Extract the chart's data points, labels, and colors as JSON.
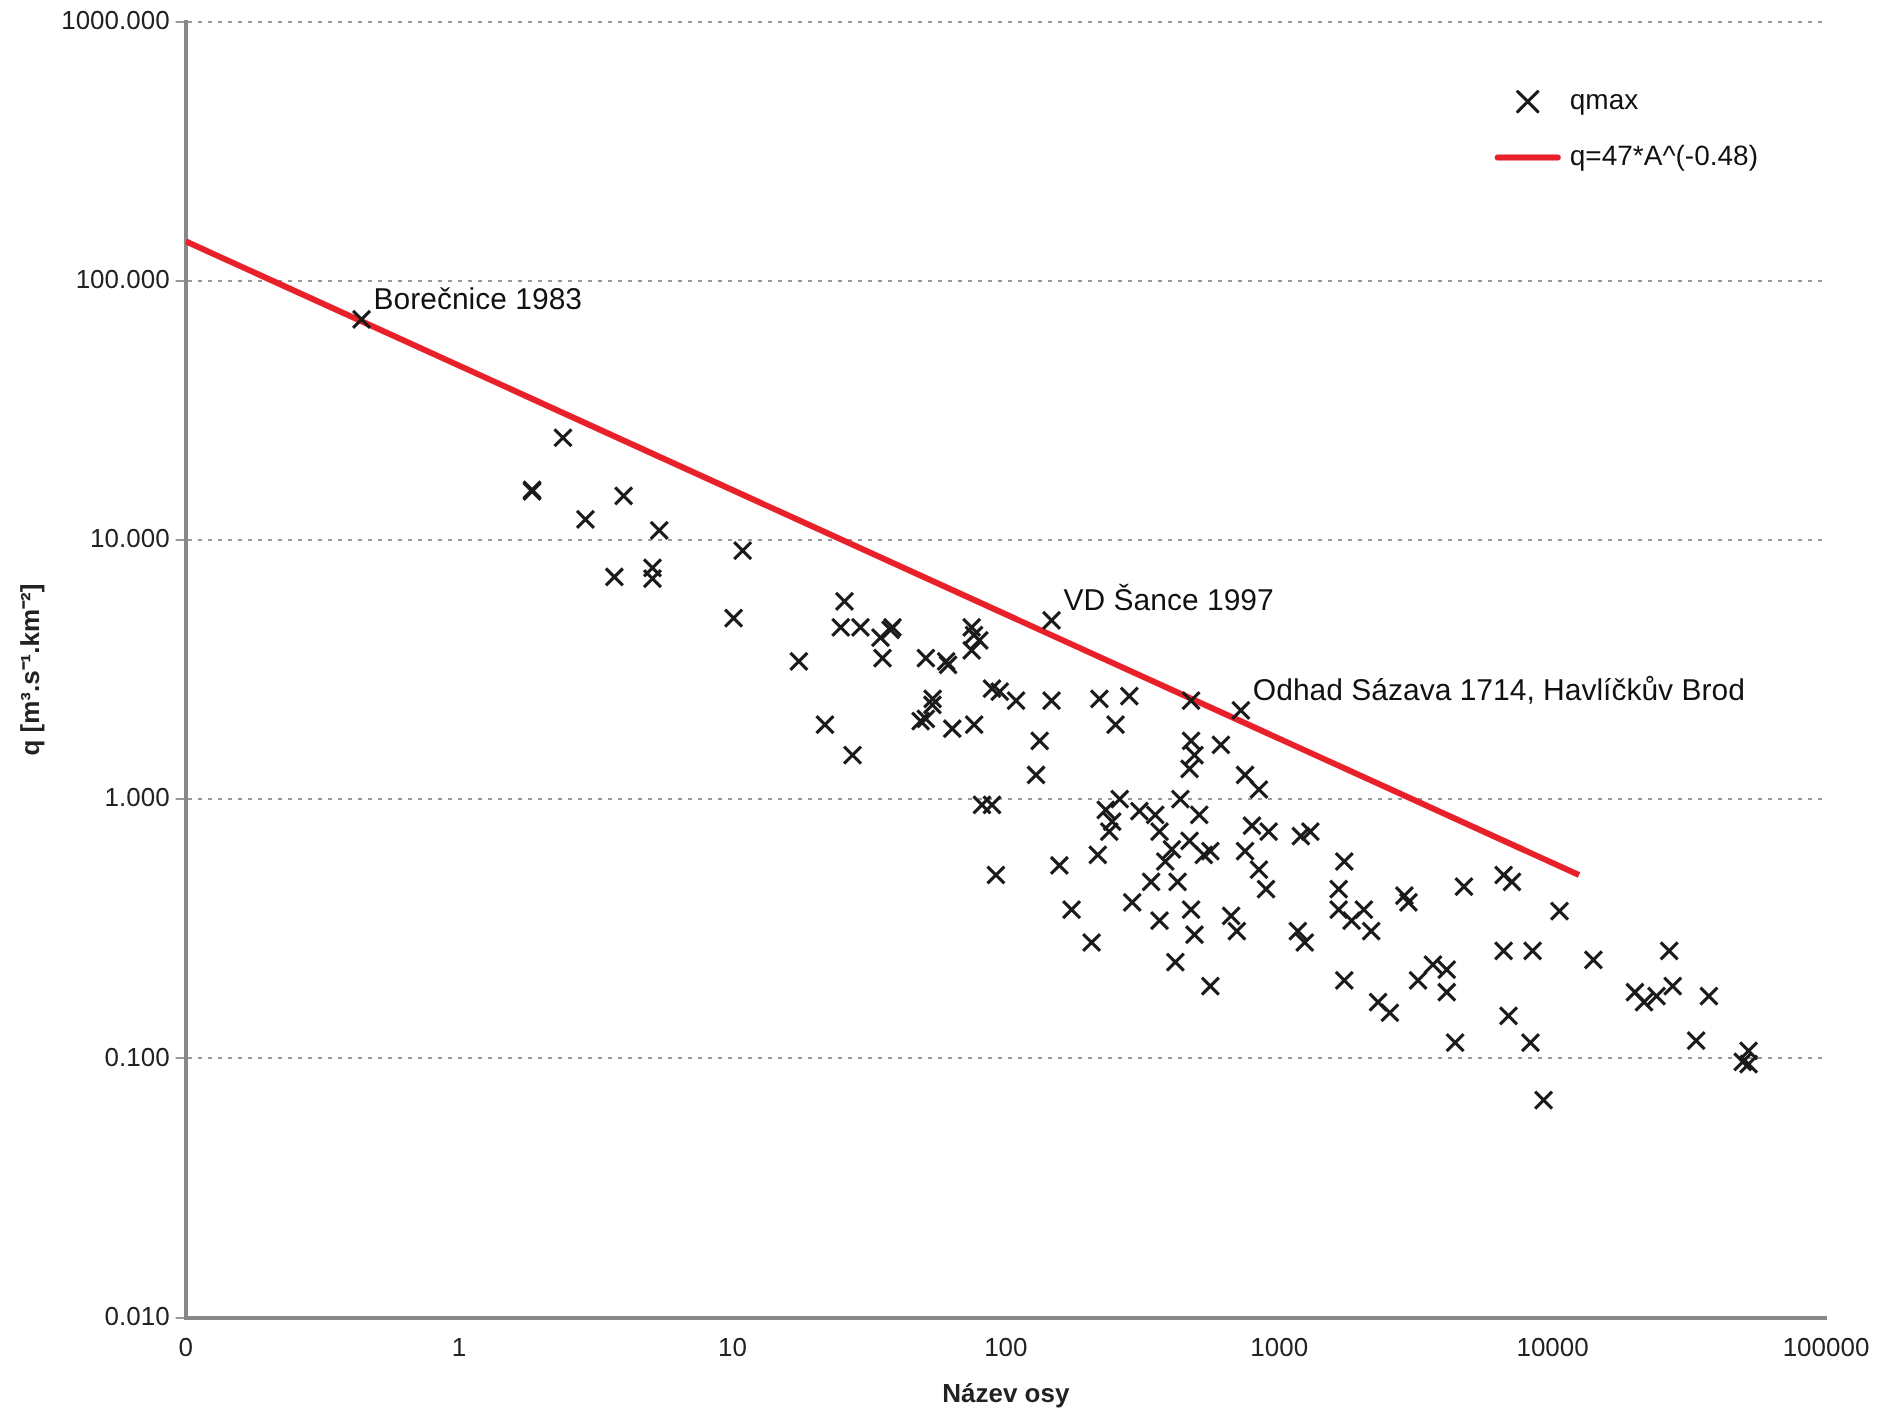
{
  "chart_data": {
    "type": "scatter",
    "xlabel": "Název osy",
    "ylabel": "q [m³.s⁻¹.km⁻²]",
    "log": "xy",
    "grid": "y",
    "legend": "top right",
    "marker": "cross",
    "xlim": [
      0.1,
      100000
    ],
    "xticks": [
      {
        "value": 0.1,
        "label": "0"
      },
      1,
      10,
      100,
      1000,
      10000,
      100000
    ],
    "ylim": [
      0.01,
      1000
    ],
    "yticks": [
      {
        "value": 0.01,
        "label": "0.010"
      },
      {
        "value": 0.1,
        "label": "0.100"
      },
      {
        "value": 1,
        "label": "1.000"
      },
      {
        "value": 10,
        "label": "10.000"
      },
      {
        "value": 100,
        "label": "100.000"
      },
      {
        "value": 1000,
        "label": "1000.000"
      }
    ],
    "annotations": [
      {
        "text": "Borečnice 1983",
        "x": 0.44,
        "y": 71
      },
      {
        "text": "VD Šance 1997",
        "x": 147,
        "y": 4.9
      },
      {
        "text": "Odhad Sázava 1714, Havlíčkův Brod",
        "x": 724,
        "y": 2.2
      }
    ],
    "series": [
      {
        "name": "qmax",
        "type": "scatter",
        "color": "#1a1a1a",
        "x": [
          0.44,
          2.4,
          1.85,
          1.85,
          4.0,
          2.9,
          5.4,
          3.7,
          5.1,
          5.1,
          10.9,
          10.1,
          17.5,
          25.7,
          24.9,
          29.4,
          34.8,
          37.9,
          35.4,
          51,
          61.5,
          76.5,
          75,
          89,
          21.8,
          27.5,
          48.8,
          53.9,
          63.7,
          76.6,
          81.8,
          89,
          92,
          147,
          38.5,
          75,
          80,
          60.5,
          54,
          95,
          147,
          220,
          283,
          51,
          109,
          252,
          133,
          129,
          157,
          174,
          206,
          217,
          232,
          261,
          239,
          245,
          308,
          352,
          365,
          290,
          340,
          365,
          383,
          405,
          425,
          476,
          476,
          490,
          470,
          435,
          510,
          470,
          530,
          560,
          476,
          490,
          417,
          560,
          724,
          612,
          750,
          843,
          795,
          915,
          750,
          843,
          895,
          667,
          700,
          1200,
          1300,
          1170,
          1240,
          1730,
          1650,
          1650,
          1840,
          2040,
          2170,
          1730,
          2300,
          2540,
          2870,
          2970,
          4740,
          3220,
          3650,
          4100,
          4100,
          4400,
          6620,
          7100,
          6620,
          8450,
          6900,
          8300,
          9270,
          10600,
          14100,
          20000,
          21600,
          26700,
          27500,
          24000,
          37300,
          33500,
          52100,
          49600,
          52100
        ],
        "values": [
          71,
          24.8,
          15.6,
          15.4,
          14.8,
          12.0,
          10.9,
          7.2,
          7.8,
          7.1,
          9.1,
          5.0,
          3.4,
          5.8,
          4.6,
          4.6,
          4.2,
          4.5,
          3.5,
          3.5,
          3.3,
          4.3,
          3.75,
          2.67,
          1.94,
          1.48,
          2.0,
          2.31,
          1.87,
          1.94,
          0.95,
          0.95,
          0.51,
          4.9,
          4.6,
          4.6,
          4.1,
          3.4,
          2.44,
          2.6,
          2.4,
          2.44,
          2.5,
          2.04,
          2.4,
          1.94,
          1.68,
          1.24,
          0.555,
          0.375,
          0.28,
          0.61,
          0.91,
          1.0,
          0.75,
          0.82,
          0.9,
          0.87,
          0.75,
          0.4,
          0.48,
          0.34,
          0.575,
          0.64,
          0.48,
          2.4,
          1.68,
          1.48,
          1.31,
          1.0,
          0.87,
          0.69,
          0.61,
          0.63,
          0.375,
          0.3,
          0.235,
          0.19,
          2.2,
          1.62,
          1.24,
          1.09,
          0.79,
          0.75,
          0.63,
          0.535,
          0.45,
          0.355,
          0.31,
          0.72,
          0.75,
          0.31,
          0.28,
          0.575,
          0.45,
          0.375,
          0.34,
          0.375,
          0.31,
          0.2,
          0.165,
          0.15,
          0.425,
          0.4,
          0.46,
          0.2,
          0.23,
          0.22,
          0.18,
          0.115,
          0.51,
          0.48,
          0.26,
          0.26,
          0.146,
          0.115,
          0.069,
          0.37,
          0.24,
          0.18,
          0.165,
          0.26,
          0.19,
          0.174,
          0.174,
          0.117,
          0.107,
          0.097,
          0.095
        ]
      },
      {
        "name": "q=47*A^(-0.48)",
        "type": "line",
        "color": "#e8202a",
        "marker": "none",
        "line_style": "solid",
        "x": [
          0.1,
          12500
        ],
        "values": [
          142,
          0.51
        ]
      }
    ]
  }
}
